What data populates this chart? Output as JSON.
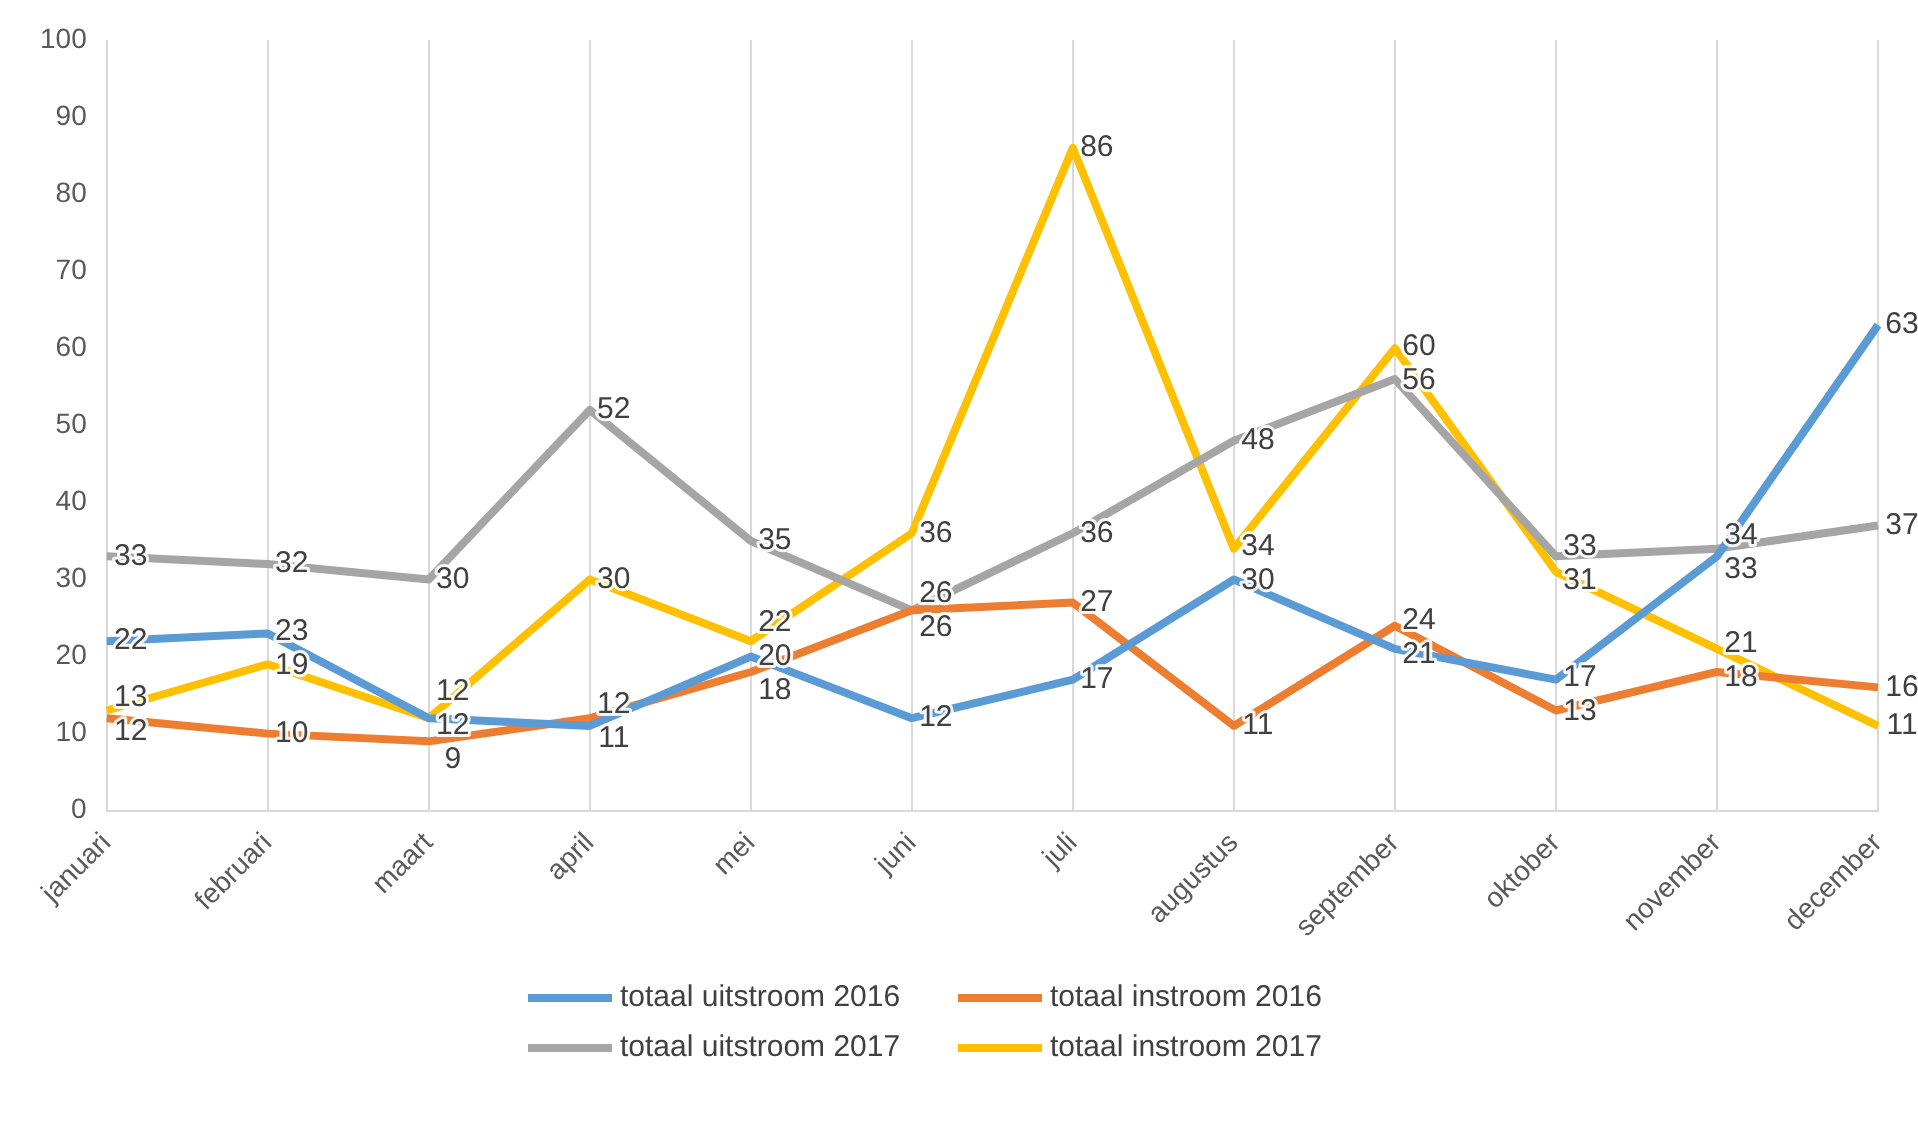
{
  "chart_data": {
    "type": "line",
    "categories": [
      "januari",
      "februari",
      "maart",
      "april",
      "mei",
      "juni",
      "juli",
      "augustus",
      "september",
      "oktober",
      "november",
      "december"
    ],
    "series": [
      {
        "name": "totaal uitstroom 2016",
        "color": "#5b9bd5",
        "values": [
          22,
          23,
          12,
          11,
          20,
          12,
          17,
          30,
          21,
          17,
          33,
          63
        ]
      },
      {
        "name": "totaal instroom 2016",
        "color": "#ed7d31",
        "values": [
          12,
          10,
          9,
          12,
          18,
          26,
          27,
          11,
          24,
          13,
          18,
          16
        ]
      },
      {
        "name": "totaal uitstroom 2017",
        "color": "#a5a5a5",
        "values": [
          33,
          32,
          30,
          52,
          35,
          26,
          36,
          48,
          56,
          33,
          34,
          37
        ]
      },
      {
        "name": "totaal instroom 2017",
        "color": "#ffc000",
        "values": [
          13,
          19,
          12,
          30,
          22,
          36,
          86,
          34,
          60,
          31,
          21,
          11
        ]
      }
    ],
    "ylim": [
      0,
      100
    ],
    "yticks": [
      0,
      10,
      20,
      30,
      40,
      50,
      60,
      70,
      80,
      90,
      100
    ],
    "grid": "x",
    "legend": "bottom",
    "marker": "none",
    "data_labels": true
  }
}
